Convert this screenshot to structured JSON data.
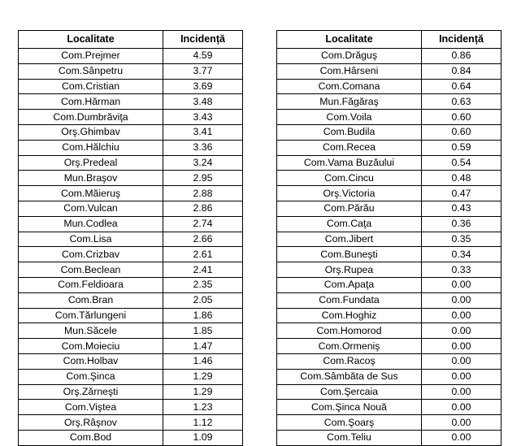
{
  "headers": {
    "locality": "Localitate",
    "incidence": "Incidență"
  },
  "left_table": [
    [
      "Com.Prejmer",
      "4.59"
    ],
    [
      "Com.Sânpetru",
      "3.77"
    ],
    [
      "Com.Cristian",
      "3.69"
    ],
    [
      "Com.Hărman",
      "3.48"
    ],
    [
      "Com.Dumbrăviţa",
      "3.43"
    ],
    [
      "Orş.Ghimbav",
      "3.41"
    ],
    [
      "Com.Hălchiu",
      "3.36"
    ],
    [
      "Orş.Predeal",
      "3.24"
    ],
    [
      "Mun.Braşov",
      "2.95"
    ],
    [
      "Com.Măieruş",
      "2.88"
    ],
    [
      "Com.Vulcan",
      "2.86"
    ],
    [
      "Mun.Codlea",
      "2.74"
    ],
    [
      "Com.Lisa",
      "2.66"
    ],
    [
      "Com.Crizbav",
      "2.61"
    ],
    [
      "Com.Beclean",
      "2.41"
    ],
    [
      "Com.Feldioara",
      "2.35"
    ],
    [
      "Com.Bran",
      "2.05"
    ],
    [
      "Com.Tărlungeni",
      "1.86"
    ],
    [
      "Mun.Săcele",
      "1.85"
    ],
    [
      "Com.Moieciu",
      "1.47"
    ],
    [
      "Com.Holbav",
      "1.46"
    ],
    [
      "Com.Şinca",
      "1.29"
    ],
    [
      "Orş.Zărneşti",
      "1.29"
    ],
    [
      "Com.Viştea",
      "1.23"
    ],
    [
      "Orş.Râşnov",
      "1.12"
    ],
    [
      "Com.Bod",
      "1.09"
    ]
  ],
  "right_table": [
    [
      "Com.Drăguş",
      "0.86"
    ],
    [
      "Com.Hârseni",
      "0.84"
    ],
    [
      "Com.Comana",
      "0.64"
    ],
    [
      "Mun.Făgăraş",
      "0.63"
    ],
    [
      "Com.Voila",
      "0.60"
    ],
    [
      "Com.Budila",
      "0.60"
    ],
    [
      "Com.Recea",
      "0.59"
    ],
    [
      "Com.Vama Buzăului",
      "0.54"
    ],
    [
      "Com.Cincu",
      "0.48"
    ],
    [
      "Orş.Victoria",
      "0.47"
    ],
    [
      "Com.Părău",
      "0.43"
    ],
    [
      "Com.Caţa",
      "0.36"
    ],
    [
      "Com.Jibert",
      "0.35"
    ],
    [
      "Com.Buneşti",
      "0.34"
    ],
    [
      "Orş.Rupea",
      "0.33"
    ],
    [
      "Com.Apaţa",
      "0.00"
    ],
    [
      "Com.Fundata",
      "0.00"
    ],
    [
      "Com.Hoghiz",
      "0.00"
    ],
    [
      "Com.Homorod",
      "0.00"
    ],
    [
      "Com.Ormeniş",
      "0.00"
    ],
    [
      "Com.Racoş",
      "0.00"
    ],
    [
      "Com.Sâmbăta de Sus",
      "0.00"
    ],
    [
      "Com.Şercaia",
      "0.00"
    ],
    [
      "Com.Şinca Nouă",
      "0.00"
    ],
    [
      "Com.Şoarş",
      "0.00"
    ],
    [
      "Com.Teliu",
      "0.00"
    ]
  ]
}
